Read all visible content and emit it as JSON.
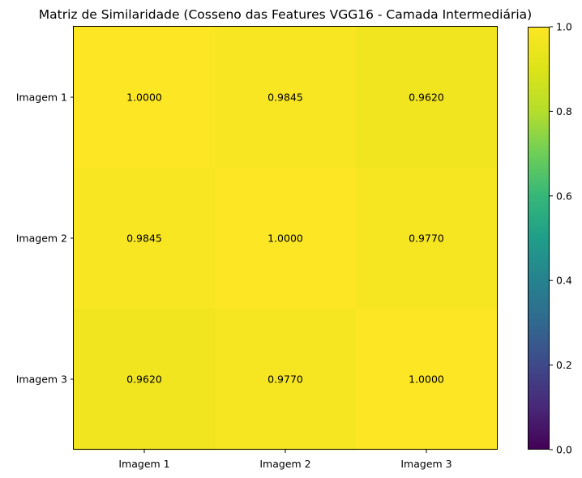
{
  "chart_data": {
    "type": "heatmap",
    "title": "Matriz de Similaridade (Cosseno das Features VGG16 - Camada Intermediária)",
    "xlabel": "",
    "ylabel": "",
    "rows": [
      "Imagem 1",
      "Imagem 2",
      "Imagem 3"
    ],
    "columns": [
      "Imagem 1",
      "Imagem 2",
      "Imagem 3"
    ],
    "values": [
      [
        1.0,
        0.9845,
        0.962
      ],
      [
        0.9845,
        1.0,
        0.977
      ],
      [
        0.962,
        0.977,
        1.0
      ]
    ],
    "cell_labels": [
      [
        "1.0000",
        "0.9845",
        "0.9620"
      ],
      [
        "0.9845",
        "1.0000",
        "0.9770"
      ],
      [
        "0.9620",
        "0.9770",
        "1.0000"
      ]
    ],
    "colormap": "viridis",
    "colorbar": {
      "range": [
        0.0,
        1.0
      ],
      "ticks": [
        0.0,
        0.2,
        0.4,
        0.6,
        0.8,
        1.0
      ],
      "tick_labels": [
        "0.0",
        "0.2",
        "0.4",
        "0.6",
        "0.8",
        "1.0"
      ]
    },
    "grid": false
  }
}
